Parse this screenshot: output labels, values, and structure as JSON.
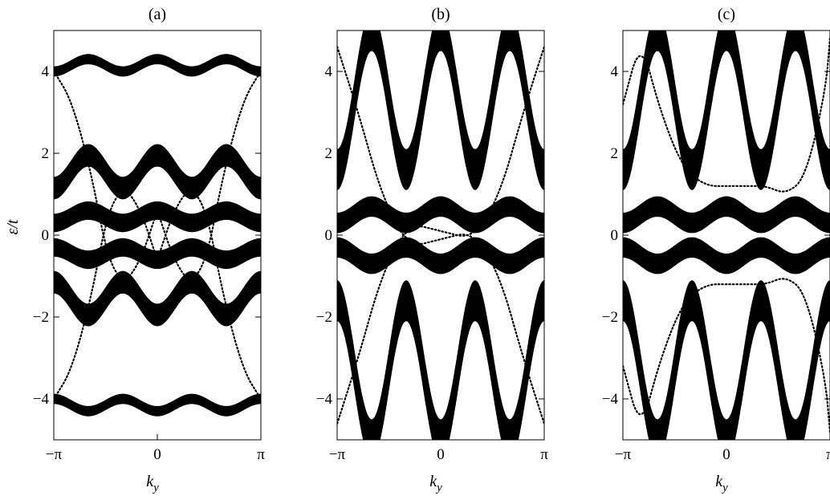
{
  "figure": {
    "background": "#ffffff",
    "ink": "#000000"
  },
  "chart_data": [
    {
      "type": "scatter",
      "title": "(a)",
      "xlabel": "k_y",
      "ylabel": "ε/t",
      "xlim": [
        -3.14159,
        3.14159
      ],
      "ylim": [
        -5,
        5
      ],
      "xticks": [
        {
          "value": -3.14159,
          "label": "−π"
        },
        {
          "value": 0,
          "label": "0"
        },
        {
          "value": 3.14159,
          "label": "π"
        }
      ],
      "yticks": [
        {
          "value": 4,
          "label": "4"
        },
        {
          "value": 2,
          "label": "2"
        },
        {
          "value": 0,
          "label": "0"
        },
        {
          "value": -2,
          "label": "−2"
        },
        {
          "value": -4,
          "label": "−4"
        }
      ],
      "bands": [
        {
          "center": 4.15,
          "amp": 0.15,
          "phase": 0.0,
          "freq": 3,
          "width": 0.25
        },
        {
          "center": 1.55,
          "amp": 0.4,
          "phase": 0.0,
          "freq": 3,
          "width": 0.55
        },
        {
          "center": 0.45,
          "amp": 0.15,
          "phase": 0.0,
          "freq": 3,
          "width": 0.45
        },
        {
          "center": -0.45,
          "amp": 0.15,
          "phase": 3.14159,
          "freq": 3,
          "width": 0.45
        },
        {
          "center": -1.55,
          "amp": 0.4,
          "phase": 3.14159,
          "freq": 3,
          "width": 0.55
        },
        {
          "center": -4.15,
          "amp": 0.15,
          "phase": 3.14159,
          "freq": 3,
          "width": 0.25
        }
      ],
      "edge_states": [
        {
          "points": [
            [
              -3.14,
              4.0
            ],
            [
              -2.6,
              3.3
            ],
            [
              -2.0,
              1.5
            ],
            [
              -1.5,
              -0.6
            ],
            [
              -1.0,
              -1.2
            ],
            [
              -0.5,
              -0.6
            ],
            [
              0.0,
              0.6
            ]
          ]
        },
        {
          "points": [
            [
              -3.14,
              -4.0
            ],
            [
              -2.6,
              -3.3
            ],
            [
              -2.0,
              -1.5
            ],
            [
              -1.5,
              0.6
            ],
            [
              -1.0,
              1.2
            ],
            [
              -0.5,
              0.6
            ],
            [
              0.0,
              -0.6
            ]
          ]
        },
        {
          "points": [
            [
              0.0,
              0.6
            ],
            [
              0.5,
              -0.6
            ],
            [
              1.0,
              -1.2
            ],
            [
              1.5,
              -0.6
            ],
            [
              2.0,
              1.5
            ],
            [
              2.6,
              3.3
            ],
            [
              3.14,
              4.0
            ]
          ]
        },
        {
          "points": [
            [
              0.0,
              -0.6
            ],
            [
              0.5,
              0.6
            ],
            [
              1.0,
              1.2
            ],
            [
              1.5,
              0.6
            ],
            [
              2.0,
              -1.5
            ],
            [
              2.6,
              -3.3
            ],
            [
              3.14,
              -4.0
            ]
          ]
        }
      ]
    },
    {
      "type": "scatter",
      "title": "(b)",
      "xlabel": "k_y",
      "ylabel": "",
      "xlim": [
        -3.14159,
        3.14159
      ],
      "ylim": [
        -5,
        5
      ],
      "xticks": [
        {
          "value": -3.14159,
          "label": "−π"
        },
        {
          "value": 0,
          "label": "0"
        },
        {
          "value": 3.14159,
          "label": "π"
        }
      ],
      "yticks": [
        {
          "value": 4,
          "label": "4"
        },
        {
          "value": 2,
          "label": "2"
        },
        {
          "value": 0,
          "label": "0"
        },
        {
          "value": -2,
          "label": "−2"
        },
        {
          "value": -4,
          "label": "−4"
        }
      ],
      "bands": [
        {
          "center": 3.3,
          "amp": 1.7,
          "phase": 0.0,
          "freq": 3,
          "width": 1.0
        },
        {
          "center": 0.5,
          "amp": 0.2,
          "phase": 0.0,
          "freq": 3,
          "width": 0.5
        },
        {
          "center": -0.5,
          "amp": 0.2,
          "phase": 3.14159,
          "freq": 3,
          "width": 0.5
        },
        {
          "center": -3.3,
          "amp": 1.7,
          "phase": 3.14159,
          "freq": 3,
          "width": 1.0
        }
      ],
      "edge_states": [
        {
          "points": [
            [
              -3.14,
              4.6
            ],
            [
              -2.5,
              3.0
            ],
            [
              -1.8,
              1.0
            ],
            [
              -1.0,
              -0.3
            ],
            [
              0.0,
              -0.1
            ],
            [
              1.0,
              0.1
            ],
            [
              1.8,
              -1.0
            ],
            [
              2.5,
              -3.0
            ],
            [
              3.14,
              -4.6
            ]
          ]
        },
        {
          "points": [
            [
              -3.14,
              -4.6
            ],
            [
              -2.5,
              -3.0
            ],
            [
              -1.8,
              -1.0
            ],
            [
              -1.0,
              0.3
            ],
            [
              0.0,
              0.1
            ],
            [
              1.0,
              -0.1
            ],
            [
              1.8,
              1.0
            ],
            [
              2.5,
              3.0
            ],
            [
              3.14,
              4.6
            ]
          ]
        }
      ]
    },
    {
      "type": "scatter",
      "title": "(c)",
      "xlabel": "k_y",
      "ylabel": "",
      "xlim": [
        -3.14159,
        3.14159
      ],
      "ylim": [
        -5,
        5
      ],
      "xticks": [
        {
          "value": -3.14159,
          "label": "−π"
        },
        {
          "value": 0,
          "label": "0"
        },
        {
          "value": 3.14159,
          "label": "π"
        }
      ],
      "yticks": [
        {
          "value": 4,
          "label": "4"
        },
        {
          "value": 2,
          "label": "2"
        },
        {
          "value": 0,
          "label": "0"
        },
        {
          "value": -2,
          "label": "−2"
        },
        {
          "value": -4,
          "label": "−4"
        }
      ],
      "bands": [
        {
          "center": 3.3,
          "amp": 1.7,
          "phase": 0.0,
          "freq": 3,
          "width": 1.0
        },
        {
          "center": 0.5,
          "amp": 0.2,
          "phase": 0.0,
          "freq": 3,
          "width": 0.5
        },
        {
          "center": -0.5,
          "amp": 0.2,
          "phase": 3.14159,
          "freq": 3,
          "width": 0.5
        },
        {
          "center": -3.3,
          "amp": 1.7,
          "phase": 3.14159,
          "freq": 3,
          "width": 1.0
        }
      ],
      "edge_states": [
        {
          "points": [
            [
              -3.14,
              3.2
            ],
            [
              -2.6,
              4.8
            ],
            [
              -2.0,
              3.0
            ],
            [
              -1.3,
              1.6
            ],
            [
              -0.6,
              1.2
            ],
            [
              0.0,
              1.2
            ],
            [
              0.7,
              1.2
            ],
            [
              1.2,
              1.2
            ],
            [
              1.8,
              1.0
            ],
            [
              2.4,
              1.4
            ],
            [
              3.0,
              3.5
            ],
            [
              3.14,
              4.8
            ]
          ]
        },
        {
          "points": [
            [
              -3.14,
              -3.2
            ],
            [
              -2.6,
              -4.8
            ],
            [
              -2.0,
              -3.0
            ],
            [
              -1.3,
              -1.6
            ],
            [
              -0.6,
              -1.2
            ],
            [
              0.0,
              -1.2
            ],
            [
              0.7,
              -1.2
            ],
            [
              1.2,
              -1.2
            ],
            [
              1.8,
              -1.0
            ],
            [
              2.4,
              -1.4
            ],
            [
              3.0,
              -3.5
            ],
            [
              3.14,
              -4.8
            ]
          ]
        }
      ]
    }
  ]
}
